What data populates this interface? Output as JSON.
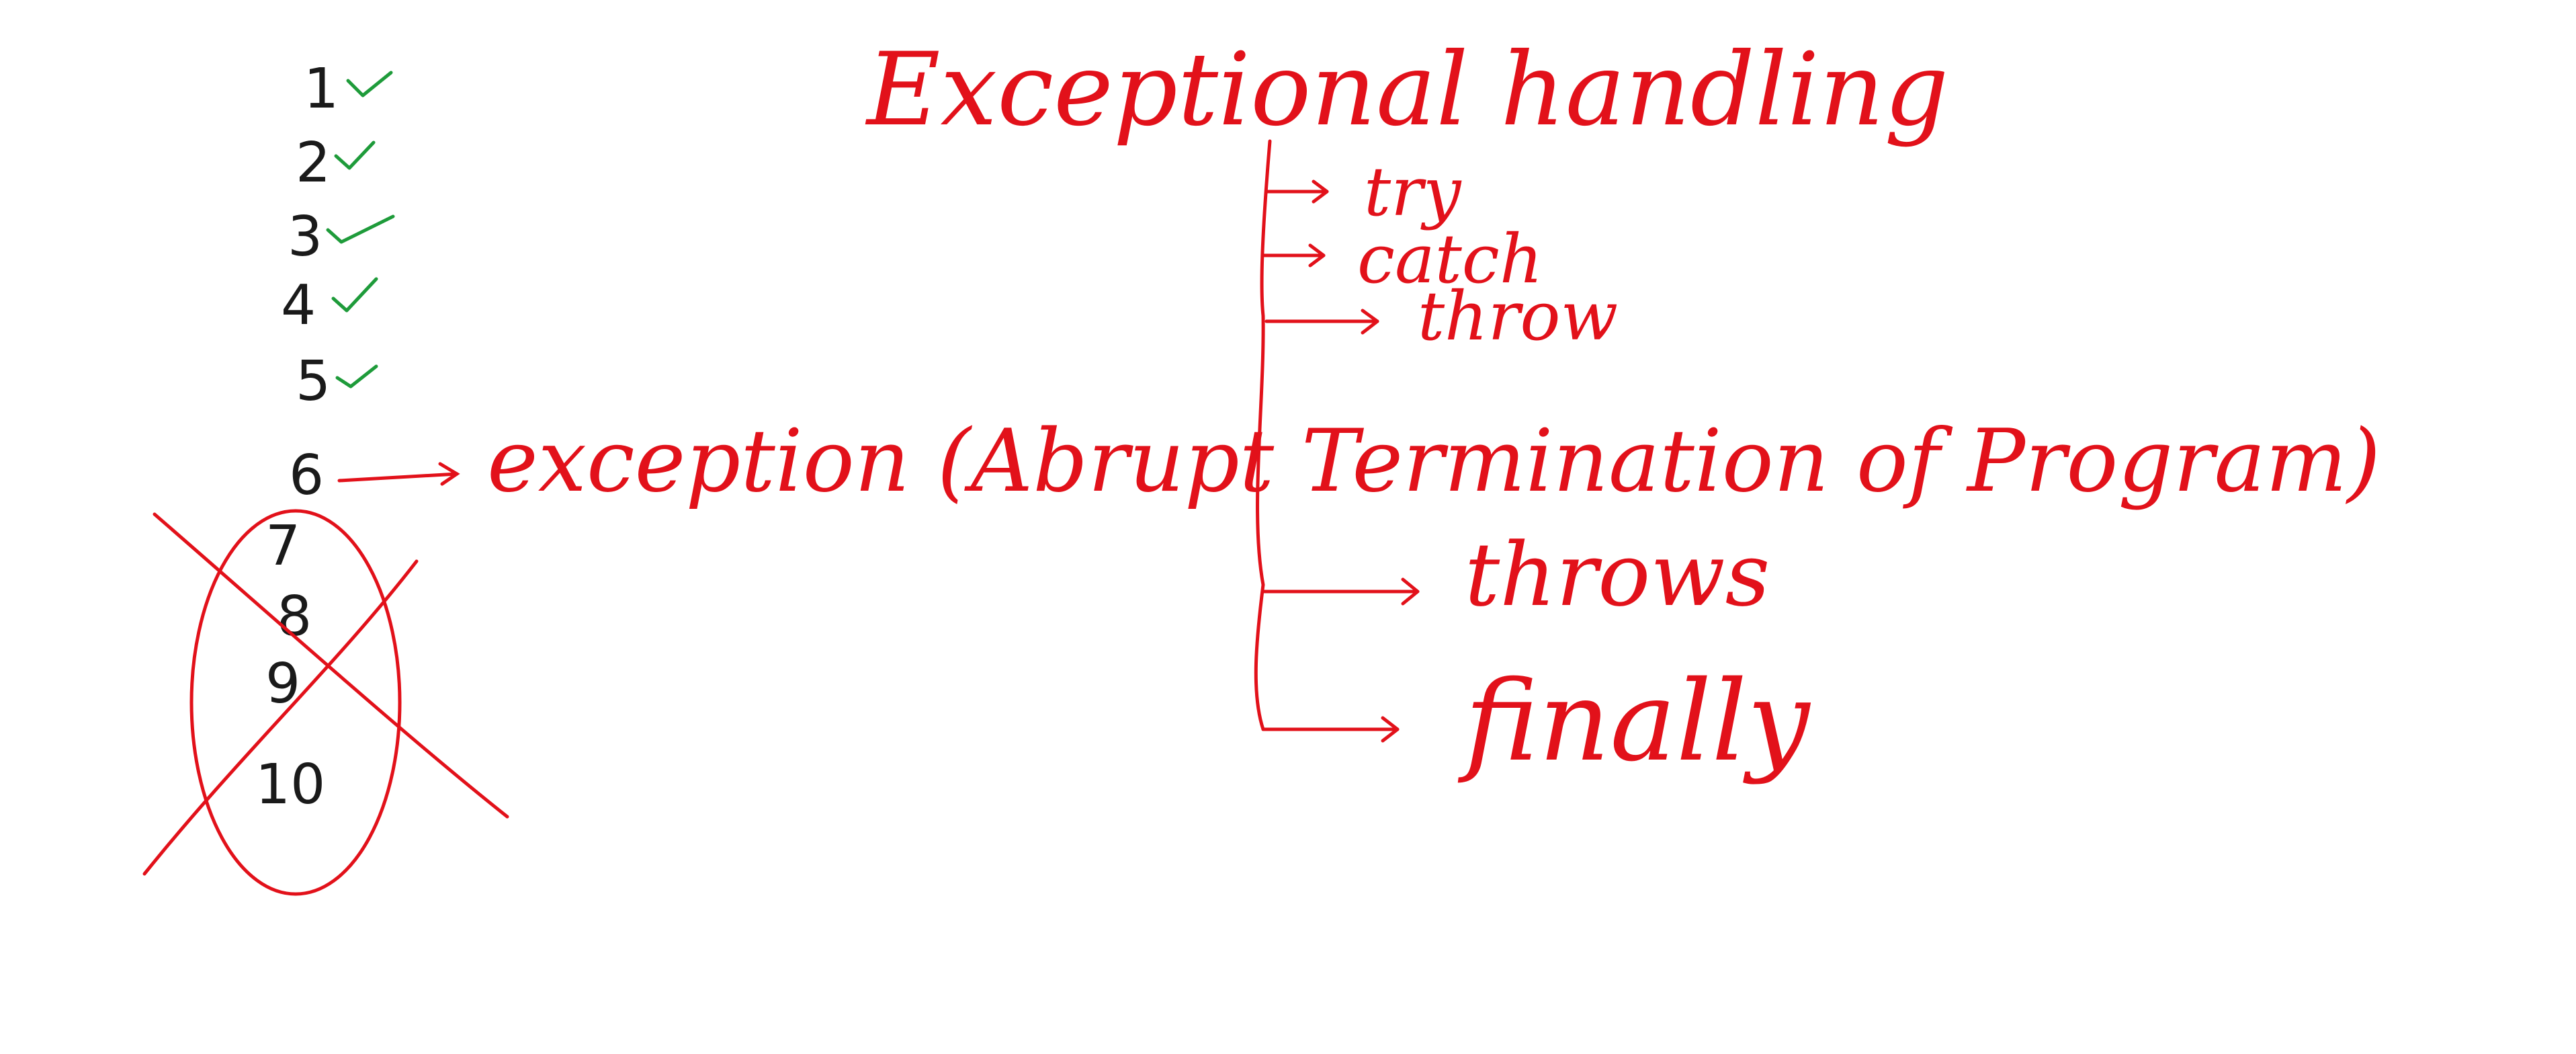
{
  "title": "Exceptional handling",
  "keywords": [
    "try",
    "catch",
    "throw",
    "throws",
    "finally"
  ],
  "numbers": [
    "1",
    "2",
    "3",
    "4",
    "5",
    "6",
    "7",
    "8",
    "9",
    "10"
  ],
  "exception_note": "exception (Abrupt Termination of Program)",
  "colors": {
    "ink_red": "#e2111a",
    "ink_black": "#1a1a1a",
    "check_green": "#1e9b3a",
    "background": "#ffffff"
  }
}
